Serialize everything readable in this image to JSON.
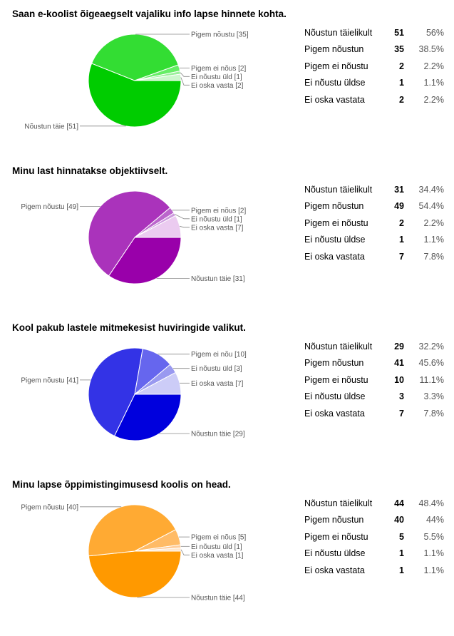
{
  "chart_data": [
    {
      "type": "pie",
      "title": "Saan e-koolist õigeaegselt vajaliku info lapse hinnete kohta.",
      "colors": [
        "#00cc00",
        "#33dd33",
        "#66ee66",
        "#99f099",
        "#ccf7cc"
      ],
      "slices": [
        {
          "label": "Nõustun täielikult",
          "pie_label": "Nõustun täie [51]",
          "value": 51,
          "percent": "56%"
        },
        {
          "label": "Pigem nõustun",
          "pie_label": "Pigem nõustu [35]",
          "value": 35,
          "percent": "38.5%"
        },
        {
          "label": "Pigem ei nõustu",
          "pie_label": "Pigem ei nõus [2]",
          "value": 2,
          "percent": "2.2%"
        },
        {
          "label": "Ei nõustu üldse",
          "pie_label": "Ei nõustu üld [1]",
          "value": 1,
          "percent": "1.1%"
        },
        {
          "label": "Ei oska vastata",
          "pie_label": "Ei oska vasta [2]",
          "value": 2,
          "percent": "2.2%"
        }
      ]
    },
    {
      "type": "pie",
      "title": "Minu last hinnatakse objektiivselt.",
      "colors": [
        "#9900aa",
        "#aa33bb",
        "#bb66cc",
        "#cc99dd",
        "#ebcbf0"
      ],
      "slices": [
        {
          "label": "Nõustun täielikult",
          "pie_label": "Nõustun täie [31]",
          "value": 31,
          "percent": "34.4%"
        },
        {
          "label": "Pigem nõustun",
          "pie_label": "Pigem nõustu [49]",
          "value": 49,
          "percent": "54.4%"
        },
        {
          "label": "Pigem ei nõustu",
          "pie_label": "Pigem ei nõus [2]",
          "value": 2,
          "percent": "2.2%"
        },
        {
          "label": "Ei nõustu üldse",
          "pie_label": "Ei nõustu üld [1]",
          "value": 1,
          "percent": "1.1%"
        },
        {
          "label": "Ei oska vastata",
          "pie_label": "Ei oska vasta [7]",
          "value": 7,
          "percent": "7.8%"
        }
      ]
    },
    {
      "type": "pie",
      "title": "Kool pakub lastele mitmekesist huviringide valikut.",
      "colors": [
        "#0000dd",
        "#3333e6",
        "#6666ee",
        "#9999f0",
        "#ccccf7"
      ],
      "slices": [
        {
          "label": "Nõustun täielikult",
          "pie_label": "Nõustun täie [29]",
          "value": 29,
          "percent": "32.2%"
        },
        {
          "label": "Pigem nõustun",
          "pie_label": "Pigem nõustu [41]",
          "value": 41,
          "percent": "45.6%"
        },
        {
          "label": "Pigem ei nõustu",
          "pie_label": "Pigem ei nõu [10]",
          "value": 10,
          "percent": "11.1%"
        },
        {
          "label": "Ei nõustu üldse",
          "pie_label": "Ei nõustu üld [3]",
          "value": 3,
          "percent": "3.3%"
        },
        {
          "label": "Ei oska vastata",
          "pie_label": "Ei oska vasta [7]",
          "value": 7,
          "percent": "7.8%"
        }
      ]
    },
    {
      "type": "pie",
      "title": "Minu lapse õppimistingimusesd koolis on head.",
      "colors": [
        "#ff9900",
        "#ffaa33",
        "#ffbb66",
        "#ffcc99",
        "#ffe6cc"
      ],
      "slices": [
        {
          "label": "Nõustun täielikult",
          "pie_label": "Nõustun täie [44]",
          "value": 44,
          "percent": "48.4%"
        },
        {
          "label": "Pigem nõustun",
          "pie_label": "Pigem nõustu [40]",
          "value": 40,
          "percent": "44%"
        },
        {
          "label": "Pigem ei nõustu",
          "pie_label": "Pigem ei nõus [5]",
          "value": 5,
          "percent": "5.5%"
        },
        {
          "label": "Ei nõustu üldse",
          "pie_label": "Ei nõustu üld [1]",
          "value": 1,
          "percent": "1.1%"
        },
        {
          "label": "Ei oska vastata",
          "pie_label": "Ei oska vasta [1]",
          "value": 1,
          "percent": "1.1%"
        }
      ]
    }
  ]
}
